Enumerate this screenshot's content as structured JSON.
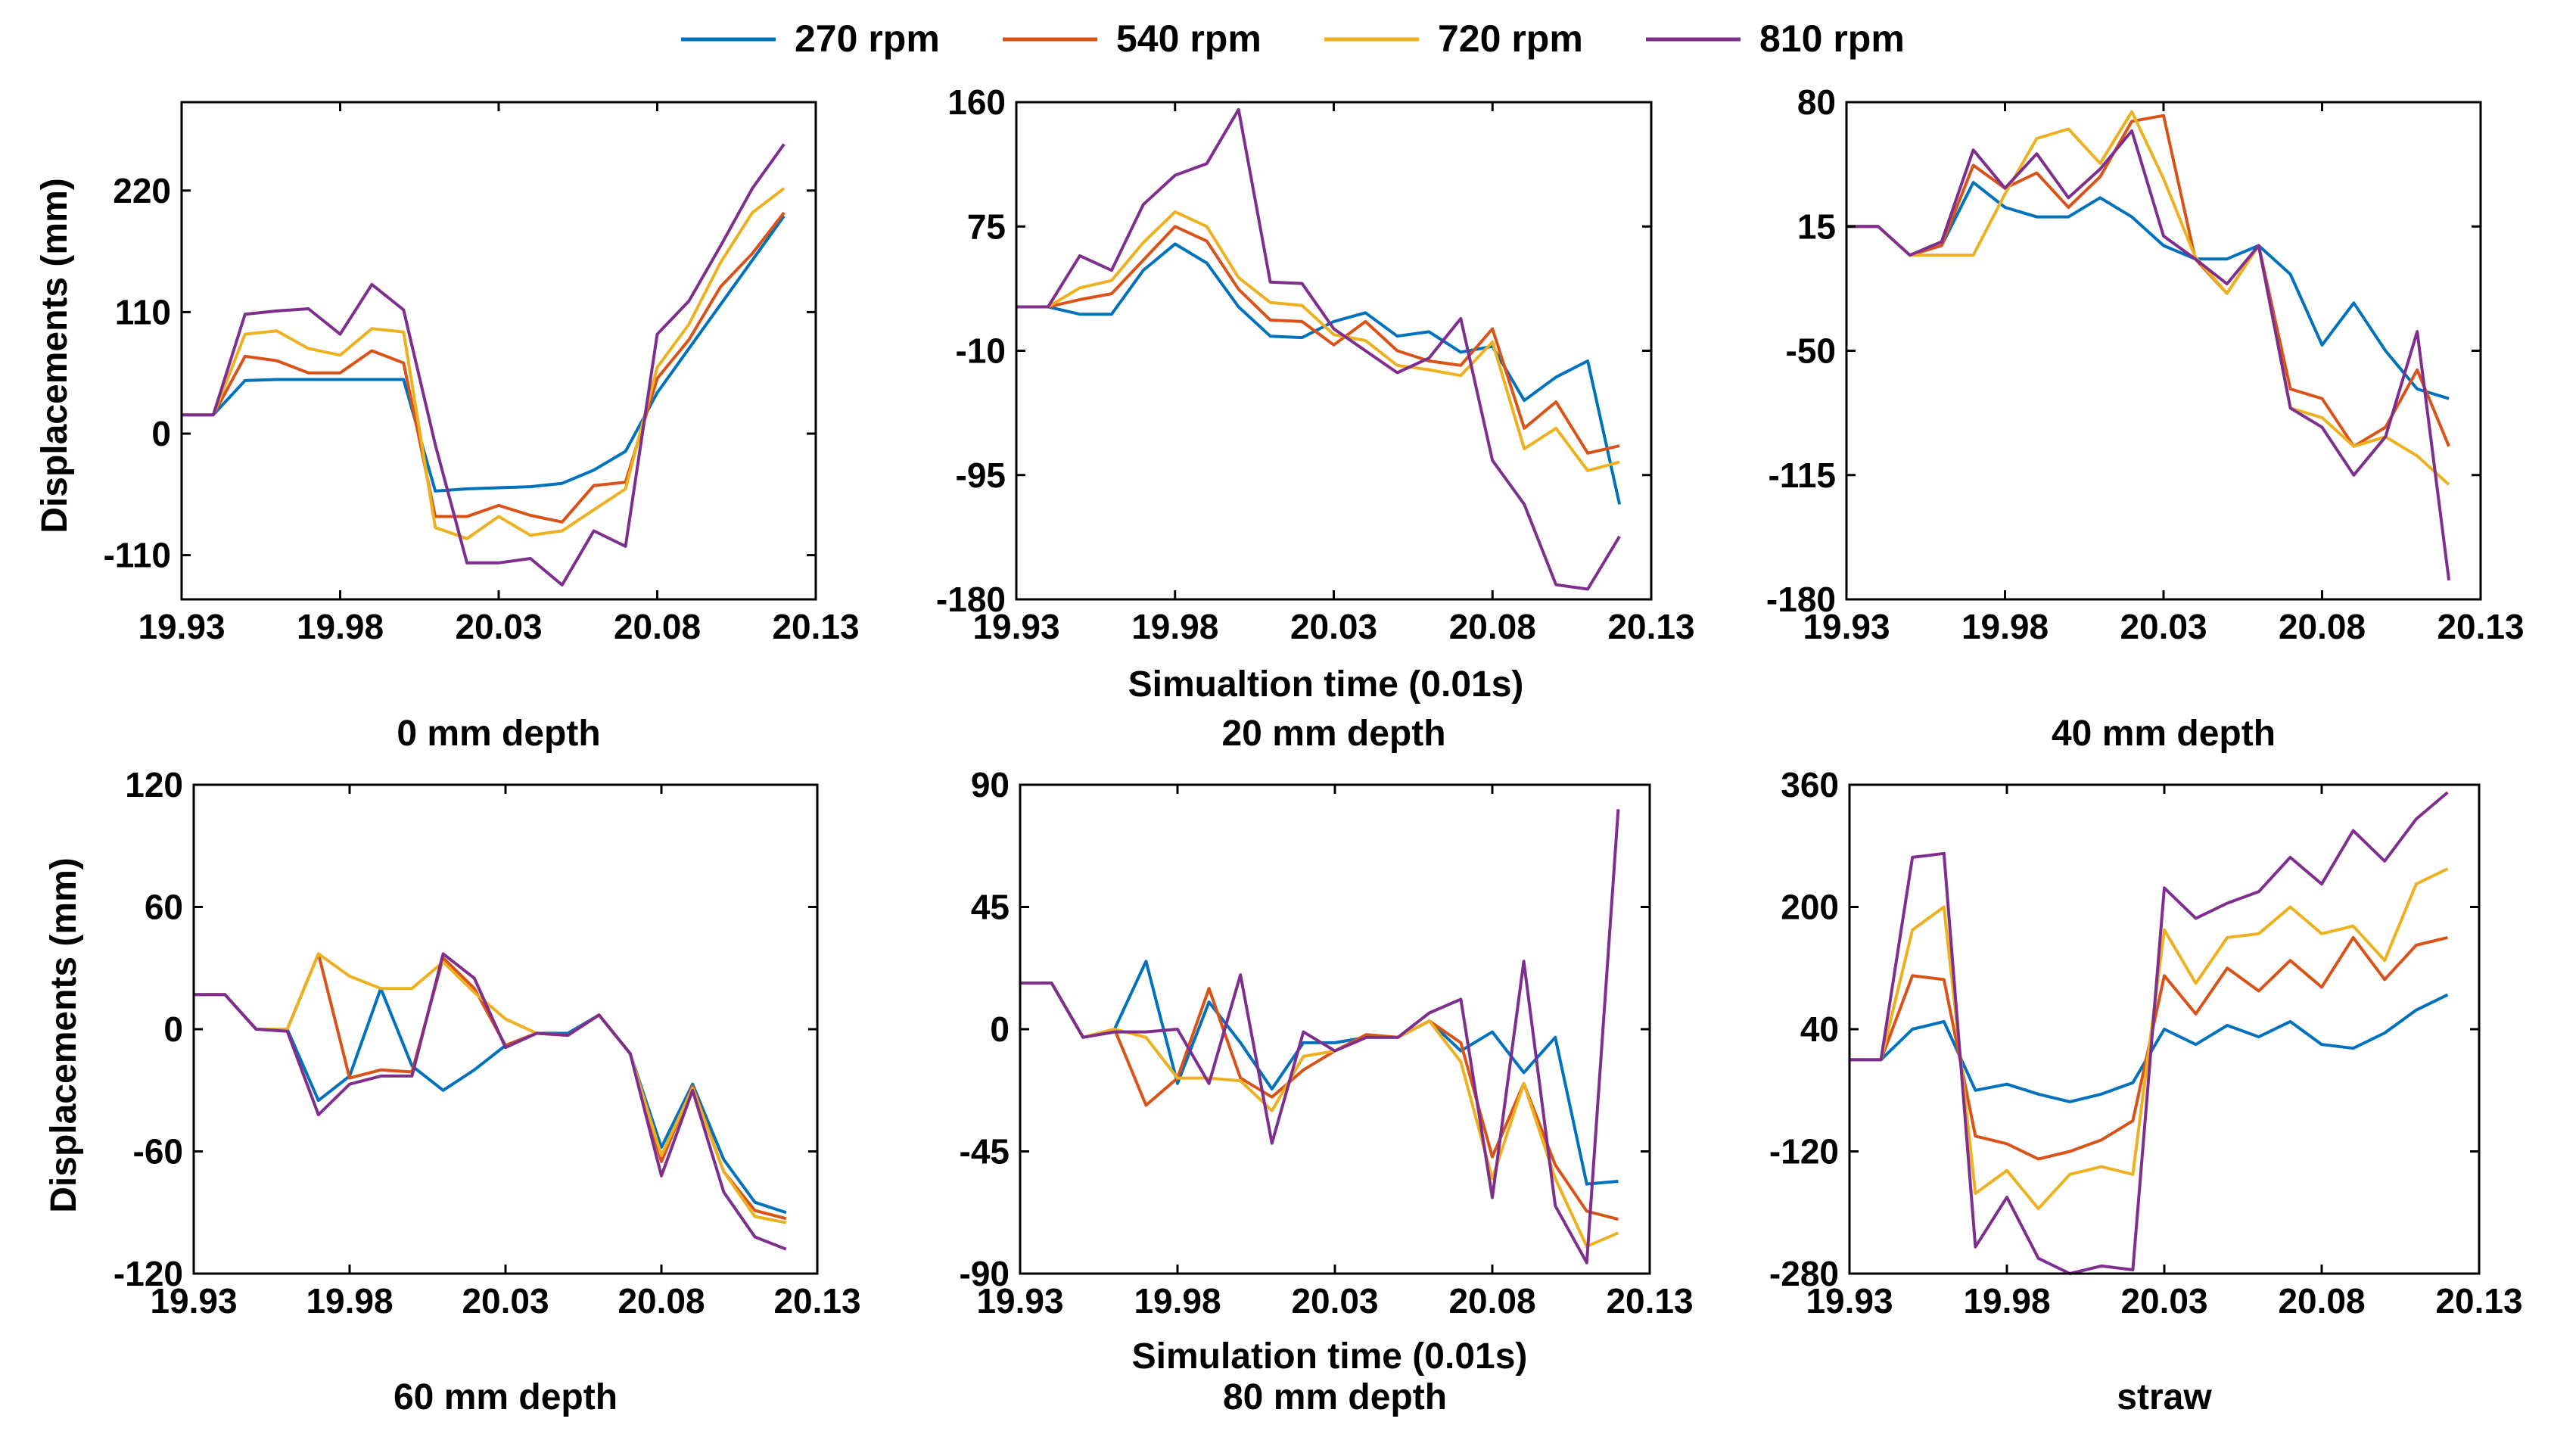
{
  "legend": [
    {
      "name": "270 rpm",
      "color": "#0072BD"
    },
    {
      "name": "540 rpm",
      "color": "#D95319"
    },
    {
      "name": "720 rpm",
      "color": "#EDB120"
    },
    {
      "name": "810 rpm",
      "color": "#7E2F8E"
    }
  ],
  "ylabel": "Displacements (mm)",
  "xlabels": {
    "top": "Simualtion time (0.01s)",
    "bottom": "Simulation time (0.01s)"
  },
  "chart_data": [
    {
      "type": "line",
      "title": "0 mm depth",
      "xlim": [
        19.93,
        20.13
      ],
      "xticks": [
        "19.93",
        "19.98",
        "20.03",
        "20.08",
        "20.13"
      ],
      "ylim": [
        -150,
        300
      ],
      "yticks": [
        -110,
        0,
        110,
        220
      ],
      "x": [
        19.93,
        19.94,
        19.95,
        19.96,
        19.97,
        19.98,
        19.99,
        20.0,
        20.01,
        20.02,
        20.03,
        20.04,
        20.05,
        20.06,
        20.07,
        20.08,
        20.09,
        20.1,
        20.11,
        20.12
      ],
      "series": [
        {
          "name": "270 rpm",
          "values": [
            17,
            17,
            48,
            49,
            49,
            49,
            49,
            49,
            -52,
            -50,
            -49,
            -48,
            -45,
            -33,
            -16,
            37,
            77,
            117,
            157,
            197
          ]
        },
        {
          "name": "540 rpm",
          "values": [
            17,
            17,
            70,
            66,
            55,
            55,
            75,
            64,
            -75,
            -75,
            -65,
            -74,
            -80,
            -47,
            -44,
            50,
            85,
            133,
            163,
            200
          ]
        },
        {
          "name": "720 rpm",
          "values": [
            17,
            17,
            90,
            93,
            77,
            71,
            95,
            92,
            -85,
            -95,
            -75,
            -92,
            -88,
            -69,
            -50,
            60,
            99,
            155,
            200,
            222
          ]
        },
        {
          "name": "810 rpm",
          "values": [
            17,
            17,
            108,
            111,
            113,
            90,
            135,
            112,
            -10,
            -117,
            -117,
            -113,
            -137,
            -88,
            -102,
            90,
            120,
            170,
            222,
            262
          ]
        }
      ]
    },
    {
      "type": "line",
      "title": "20 mm depth",
      "xlim": [
        19.93,
        20.13
      ],
      "xticks": [
        "19.93",
        "19.98",
        "20.03",
        "20.08",
        "20.13"
      ],
      "ylim": [
        -180,
        160
      ],
      "yticks": [
        -180,
        -95,
        -10,
        75,
        160
      ],
      "x": [
        19.93,
        19.94,
        19.95,
        19.96,
        19.97,
        19.98,
        19.99,
        20.0,
        20.01,
        20.02,
        20.03,
        20.04,
        20.05,
        20.06,
        20.07,
        20.08,
        20.09,
        20.1,
        20.11,
        20.12
      ],
      "series": [
        {
          "name": "270 rpm",
          "values": [
            20,
            20,
            15,
            15,
            45,
            63,
            50,
            20,
            0,
            -1,
            10,
            16,
            0,
            3,
            -11,
            -7,
            -44,
            -28,
            -17,
            -115
          ]
        },
        {
          "name": "540 rpm",
          "values": [
            20,
            20,
            25,
            29,
            52,
            75,
            65,
            32,
            11,
            10,
            -6,
            10,
            -10,
            -17,
            -20,
            5,
            -63,
            -45,
            -80,
            -75
          ]
        },
        {
          "name": "720 rpm",
          "values": [
            20,
            20,
            33,
            38,
            64,
            85,
            75,
            40,
            23,
            21,
            1,
            -3,
            -20,
            -23,
            -27,
            -4,
            -77,
            -63,
            -92,
            -86
          ]
        },
        {
          "name": "810 rpm",
          "values": [
            20,
            20,
            55,
            45,
            90,
            110,
            118,
            155,
            37,
            36,
            5,
            -10,
            -25,
            -15,
            12,
            -85,
            -115,
            -170,
            -173,
            -137
          ]
        }
      ]
    },
    {
      "type": "line",
      "title": "40 mm depth",
      "xlim": [
        19.93,
        20.13
      ],
      "xticks": [
        "19.93",
        "19.98",
        "20.03",
        "20.08",
        "20.13"
      ],
      "ylim": [
        -180,
        80
      ],
      "yticks": [
        -180,
        -115,
        -50,
        15,
        80
      ],
      "x": [
        19.93,
        19.94,
        19.95,
        19.96,
        19.97,
        19.98,
        19.99,
        20.0,
        20.01,
        20.02,
        20.03,
        20.04,
        20.05,
        20.06,
        20.07,
        20.08,
        20.09,
        20.1,
        20.11,
        20.12
      ],
      "series": [
        {
          "name": "270 rpm",
          "values": [
            15,
            15,
            0,
            5,
            38,
            25,
            20,
            20,
            30,
            20,
            5,
            -2,
            -2,
            5,
            -10,
            -47,
            -25,
            -50,
            -70,
            -75
          ]
        },
        {
          "name": "540 rpm",
          "values": [
            15,
            15,
            0,
            5,
            47,
            35,
            43,
            25,
            41,
            70,
            73,
            -2,
            -20,
            5,
            -70,
            -75,
            -100,
            -90,
            -60,
            -100
          ]
        },
        {
          "name": "720 rpm",
          "values": [
            15,
            15,
            0,
            0,
            0,
            32,
            61,
            66,
            48,
            75,
            40,
            -1,
            -20,
            5,
            -80,
            -85,
            -100,
            -95,
            -105,
            -120
          ]
        },
        {
          "name": "810 rpm",
          "values": [
            15,
            15,
            0,
            7,
            55,
            35,
            53,
            30,
            45,
            65,
            10,
            -2,
            -15,
            5,
            -80,
            -90,
            -115,
            -95,
            -40,
            -170
          ]
        }
      ]
    },
    {
      "type": "line",
      "title": "60 mm depth",
      "xlim": [
        19.93,
        20.13
      ],
      "xticks": [
        "19.93",
        "19.98",
        "20.03",
        "20.08",
        "20.13"
      ],
      "ylim": [
        -120,
        120
      ],
      "yticks": [
        -120,
        -60,
        0,
        60,
        120
      ],
      "x": [
        19.93,
        19.94,
        19.95,
        19.96,
        19.97,
        19.98,
        19.99,
        20.0,
        20.01,
        20.02,
        20.03,
        20.04,
        20.05,
        20.06,
        20.07,
        20.08,
        20.09,
        20.1,
        20.11,
        20.12
      ],
      "series": [
        {
          "name": "270 rpm",
          "values": [
            17,
            17,
            0,
            0,
            -35,
            -23,
            20,
            -18,
            -30,
            -20,
            -8,
            -2,
            -2,
            7,
            -12,
            -58,
            -27,
            -64,
            -85,
            -90
          ]
        },
        {
          "name": "540 rpm",
          "values": [
            17,
            17,
            0,
            0,
            37,
            -24,
            -20,
            -21,
            35,
            20,
            -8,
            -2,
            -3,
            7,
            -12,
            -65,
            -28,
            -70,
            -89,
            -93
          ]
        },
        {
          "name": "720 rpm",
          "values": [
            17,
            17,
            0,
            0,
            37,
            26,
            20,
            20,
            33,
            18,
            5,
            -2,
            -3,
            7,
            -12,
            -62,
            -29,
            -70,
            -92,
            -95
          ]
        },
        {
          "name": "810 rpm",
          "values": [
            17,
            17,
            0,
            -1,
            -42,
            -27,
            -23,
            -23,
            37,
            25,
            -9,
            -2,
            -3,
            7,
            -12,
            -72,
            -30,
            -80,
            -102,
            -108
          ]
        }
      ]
    },
    {
      "type": "line",
      "title": "80 mm depth",
      "xlim": [
        19.93,
        20.13
      ],
      "xticks": [
        "19.93",
        "19.98",
        "20.03",
        "20.08",
        "20.13"
      ],
      "ylim": [
        -90,
        90
      ],
      "yticks": [
        -90,
        -45,
        0,
        45,
        90
      ],
      "x": [
        19.93,
        19.94,
        19.95,
        19.96,
        19.97,
        19.98,
        19.99,
        20.0,
        20.01,
        20.02,
        20.03,
        20.04,
        20.05,
        20.06,
        20.07,
        20.08,
        20.09,
        20.1,
        20.11,
        20.12
      ],
      "series": [
        {
          "name": "270 rpm",
          "values": [
            17,
            17,
            -3,
            0,
            25,
            -20,
            10,
            -5,
            -22,
            -5,
            -5,
            -3,
            -3,
            3,
            -8,
            -1,
            -16,
            -3,
            -57,
            -56
          ]
        },
        {
          "name": "540 rpm",
          "values": [
            17,
            17,
            -3,
            0,
            -28,
            -18,
            15,
            -18,
            -25,
            -15,
            -8,
            -2,
            -3,
            3,
            -5,
            -47,
            -20,
            -50,
            -67,
            -70
          ]
        },
        {
          "name": "720 rpm",
          "values": [
            17,
            17,
            -3,
            0,
            -3,
            -18,
            -18,
            -19,
            -30,
            -10,
            -8,
            -3,
            -3,
            3,
            -12,
            -55,
            -20,
            -55,
            -80,
            -75
          ]
        },
        {
          "name": "810 rpm",
          "values": [
            17,
            17,
            -3,
            -1,
            -1,
            0,
            -20,
            20,
            -42,
            -1,
            -8,
            -3,
            -3,
            6,
            11,
            -62,
            25,
            -65,
            -86,
            81
          ]
        }
      ]
    },
    {
      "type": "line",
      "title": "straw",
      "xlim": [
        19.93,
        20.13
      ],
      "xticks": [
        "19.93",
        "19.98",
        "20.03",
        "20.08",
        "20.13"
      ],
      "ylim": [
        -280,
        360
      ],
      "yticks": [
        -280,
        -120,
        40,
        200,
        360
      ],
      "x": [
        19.93,
        19.94,
        19.95,
        19.96,
        19.97,
        19.98,
        19.99,
        20.0,
        20.01,
        20.02,
        20.03,
        20.04,
        20.05,
        20.06,
        20.07,
        20.08,
        20.09,
        20.1,
        20.11,
        20.12
      ],
      "series": [
        {
          "name": "270 rpm",
          "values": [
            0,
            0,
            40,
            50,
            -40,
            -32,
            -45,
            -55,
            -45,
            -30,
            40,
            20,
            45,
            30,
            50,
            20,
            15,
            35,
            65,
            85
          ]
        },
        {
          "name": "540 rpm",
          "values": [
            0,
            0,
            110,
            105,
            -100,
            -110,
            -130,
            -120,
            -105,
            -80,
            110,
            60,
            120,
            90,
            130,
            95,
            160,
            105,
            150,
            160
          ]
        },
        {
          "name": "720 rpm",
          "values": [
            0,
            0,
            170,
            200,
            -175,
            -145,
            -195,
            -150,
            -140,
            -150,
            170,
            100,
            160,
            165,
            200,
            165,
            175,
            130,
            230,
            250
          ]
        },
        {
          "name": "810 rpm",
          "values": [
            0,
            0,
            265,
            270,
            -245,
            -180,
            -260,
            -280,
            -270,
            -275,
            225,
            185,
            205,
            220,
            265,
            230,
            300,
            260,
            315,
            350
          ]
        }
      ]
    }
  ]
}
